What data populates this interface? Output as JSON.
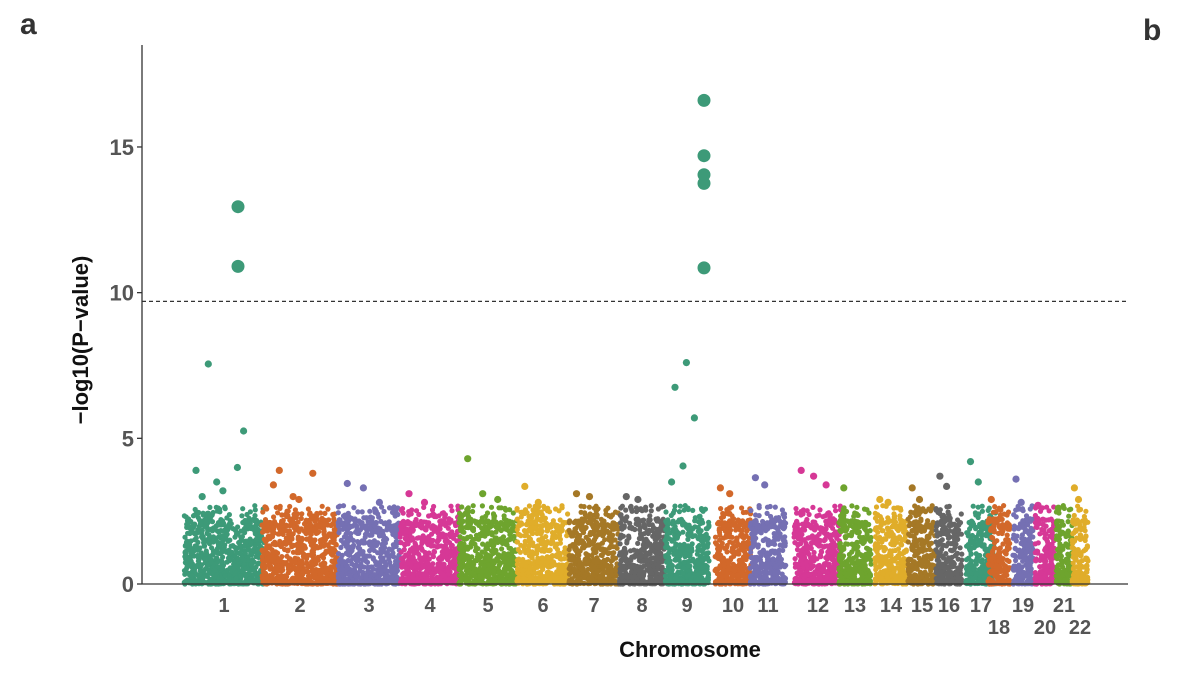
{
  "panel_labels": {
    "a": "a",
    "b": "b"
  },
  "chart_data": {
    "type": "scatter",
    "subtype": "manhattan",
    "title": "",
    "xlabel": "Chromosome",
    "ylabel": "−log10(P−value)",
    "ylim": [
      0,
      18.5
    ],
    "yticks": [
      0,
      5,
      10,
      15
    ],
    "significance_line": 9.7,
    "chromosomes": [
      {
        "name": "1",
        "label_row": 0,
        "color": "#3d9a78",
        "top_points": [
          3.9,
          3.5,
          4.0,
          3.0,
          3.2,
          5.25,
          7.55
        ],
        "hits": [
          10.9,
          12.95
        ]
      },
      {
        "name": "2",
        "label_row": 0,
        "color": "#d2682a",
        "top_points": [
          3.4,
          3.0,
          3.8,
          3.9,
          2.9
        ],
        "hits": []
      },
      {
        "name": "3",
        "label_row": 0,
        "color": "#7570b3",
        "top_points": [
          3.45,
          3.3,
          2.8
        ],
        "hits": []
      },
      {
        "name": "4",
        "label_row": 0,
        "color": "#d63896",
        "top_points": [
          3.1,
          2.8
        ],
        "hits": []
      },
      {
        "name": "5",
        "label_row": 0,
        "color": "#6ea42e",
        "top_points": [
          4.3,
          3.1,
          2.9
        ],
        "hits": []
      },
      {
        "name": "6",
        "label_row": 0,
        "color": "#e0ad2a",
        "top_points": [
          3.35,
          2.8
        ],
        "hits": []
      },
      {
        "name": "7",
        "label_row": 0,
        "color": "#a57826",
        "top_points": [
          3.1,
          3.0
        ],
        "hits": []
      },
      {
        "name": "8",
        "label_row": 0,
        "color": "#666666",
        "top_points": [
          3.0,
          2.9
        ],
        "hits": []
      },
      {
        "name": "9",
        "label_row": 0,
        "color": "#3d9a78",
        "top_points": [
          3.5,
          4.05,
          5.7,
          6.75,
          7.6
        ],
        "hits": [
          10.85,
          13.75,
          14.05,
          14.7,
          16.6
        ]
      },
      {
        "name": "10",
        "label_row": 0,
        "color": "#d2682a",
        "top_points": [
          3.3,
          3.1
        ],
        "hits": []
      },
      {
        "name": "11",
        "label_row": 0,
        "color": "#7570b3",
        "top_points": [
          3.65,
          3.4
        ],
        "hits": []
      },
      {
        "name": "12",
        "label_row": 0,
        "color": "#d63896",
        "top_points": [
          3.9,
          3.7,
          3.4
        ],
        "hits": []
      },
      {
        "name": "13",
        "label_row": 0,
        "color": "#6ea42e",
        "top_points": [
          3.3
        ],
        "hits": []
      },
      {
        "name": "14",
        "label_row": 0,
        "color": "#e0ad2a",
        "top_points": [
          2.9,
          2.8
        ],
        "hits": []
      },
      {
        "name": "15",
        "label_row": 0,
        "color": "#a57826",
        "top_points": [
          3.3,
          2.9
        ],
        "hits": []
      },
      {
        "name": "16",
        "label_row": 0,
        "color": "#666666",
        "top_points": [
          3.7,
          3.35
        ],
        "hits": []
      },
      {
        "name": "17",
        "label_row": 0,
        "color": "#3d9a78",
        "top_points": [
          4.2,
          3.5
        ],
        "hits": []
      },
      {
        "name": "18",
        "label_row": 1,
        "color": "#d2682a",
        "top_points": [
          2.9
        ],
        "hits": []
      },
      {
        "name": "19",
        "label_row": 0,
        "color": "#7570b3",
        "top_points": [
          3.6,
          2.8
        ],
        "hits": []
      },
      {
        "name": "20",
        "label_row": 1,
        "color": "#d63896",
        "top_points": [
          2.7
        ],
        "hits": []
      },
      {
        "name": "21",
        "label_row": 0,
        "color": "#6ea42e",
        "top_points": [
          2.6
        ],
        "hits": []
      },
      {
        "name": "22",
        "label_row": 1,
        "color": "#e0ad2a",
        "top_points": [
          3.3,
          2.9
        ],
        "hits": []
      }
    ]
  }
}
